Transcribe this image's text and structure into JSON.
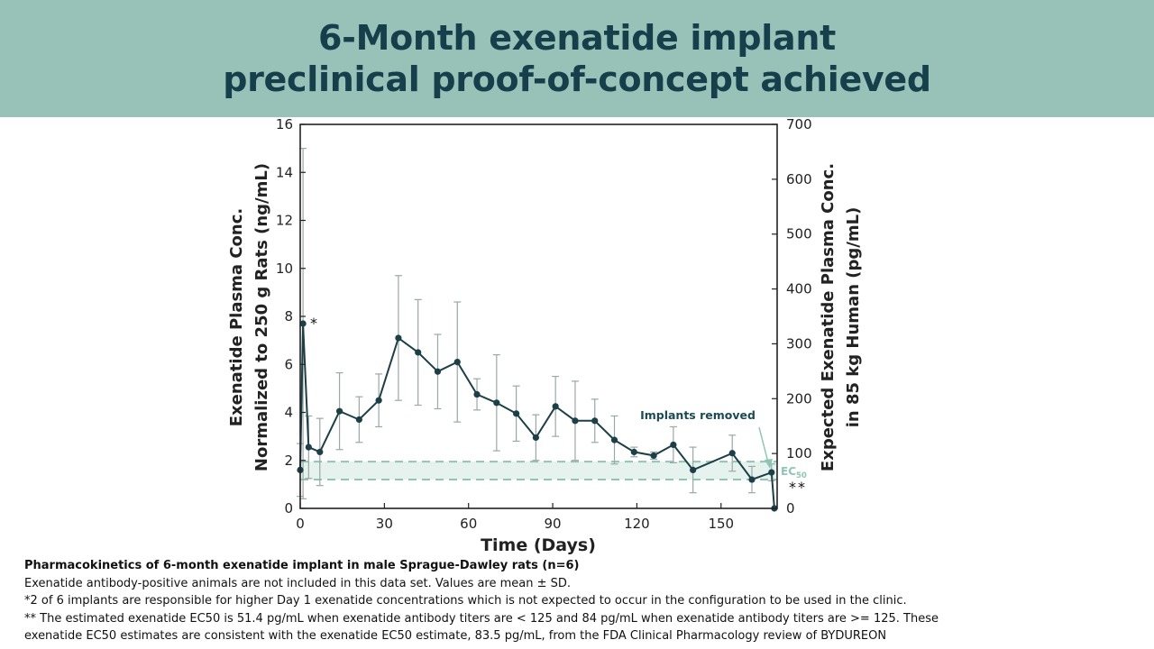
{
  "header": {
    "title_line1": "6-Month exenatide implant",
    "title_line2": "preclinical proof-of-concept achieved"
  },
  "colors": {
    "band": "#98c1b8",
    "title": "#173e4b",
    "series": "#1d3f47",
    "errorbar": "#9aa8a6",
    "ec50": "#8ec6b5",
    "annotation": "#1b4a55"
  },
  "chart_data": {
    "type": "line",
    "xlabel": "Time (Days)",
    "ylabel_left_line1": "Exenatide Plasma Conc.",
    "ylabel_left_line2": "Normalized to 250 g Rats (ng/mL)",
    "ylabel_right_line1": "Expected Exenatide Plasma Conc.",
    "ylabel_right_line2": "in 85 kg Human (pg/mL)",
    "xlim": [
      0,
      170
    ],
    "ylim_left": [
      0,
      16
    ],
    "ylim_right": [
      0,
      700
    ],
    "x_ticks": [
      0,
      30,
      60,
      90,
      120,
      150
    ],
    "y_ticks_left": [
      0,
      2,
      4,
      6,
      8,
      10,
      12,
      14,
      16
    ],
    "y_ticks_right": [
      0,
      100,
      200,
      300,
      400,
      500,
      600,
      700
    ],
    "series": [
      {
        "name": "Exenatide plasma concentration (mean ± SD)",
        "points": [
          {
            "x": 0,
            "y": 1.6,
            "sd": 1.1
          },
          {
            "x": 1,
            "y": 7.7,
            "sd": 7.3
          },
          {
            "x": 3,
            "y": 2.55,
            "sd": 1.3
          },
          {
            "x": 7,
            "y": 2.35,
            "sd": 1.4
          },
          {
            "x": 14,
            "y": 4.05,
            "sd": 1.6
          },
          {
            "x": 21,
            "y": 3.7,
            "sd": 0.95
          },
          {
            "x": 28,
            "y": 4.5,
            "sd": 1.1
          },
          {
            "x": 35,
            "y": 7.1,
            "sd": 2.6
          },
          {
            "x": 42,
            "y": 6.5,
            "sd": 2.2
          },
          {
            "x": 49,
            "y": 5.7,
            "sd": 1.55
          },
          {
            "x": 56,
            "y": 6.1,
            "sd": 2.5
          },
          {
            "x": 63,
            "y": 4.75,
            "sd": 0.65
          },
          {
            "x": 70,
            "y": 4.4,
            "sd": 2.0
          },
          {
            "x": 77,
            "y": 3.95,
            "sd": 1.15
          },
          {
            "x": 84,
            "y": 2.95,
            "sd": 0.95
          },
          {
            "x": 91,
            "y": 4.25,
            "sd": 1.25
          },
          {
            "x": 98,
            "y": 3.65,
            "sd": 1.65
          },
          {
            "x": 105,
            "y": 3.65,
            "sd": 0.9
          },
          {
            "x": 112,
            "y": 2.85,
            "sd": 1.0
          },
          {
            "x": 119,
            "y": 2.35,
            "sd": 0.2
          },
          {
            "x": 126,
            "y": 2.2,
            "sd": 0.15
          },
          {
            "x": 133,
            "y": 2.65,
            "sd": 0.75
          },
          {
            "x": 140,
            "y": 1.6,
            "sd": 0.95
          },
          {
            "x": 154,
            "y": 2.3,
            "sd": 0.75
          },
          {
            "x": 161,
            "y": 1.2,
            "sd": 0.55
          },
          {
            "x": 168,
            "y": 1.5,
            "sd": 0.35
          },
          {
            "x": 169,
            "y": 0.0,
            "sd": 0.0
          }
        ]
      }
    ],
    "ec50_band": {
      "low": 1.2,
      "high": 1.95
    },
    "ec50_label_main": "EC",
    "ec50_label_sub": "50",
    "annotations": {
      "implants_removed": "Implants removed",
      "asterisk_day1": "*",
      "asterisk_end": "**"
    },
    "grid": false
  },
  "footnotes": {
    "title": "Pharmacokinetics of 6-month exenatide implant in male Sprague-Dawley rats (n=6)",
    "line1": "Exenatide antibody-positive animals are not included in this data set. Values are mean ± SD.",
    "line2": "*2 of 6 implants are responsible for higher Day 1 exenatide concentrations which is not expected to occur in the configuration to be used in the clinic.",
    "line3": "** The estimated exenatide EC50 is 51.4 pg/mL when exenatide antibody titers are < 125 and 84 pg/mL when exenatide antibody titers are >= 125. These",
    "line4": "exenatide EC50 estimates are consistent with the exenatide EC50 estimate, 83.5 pg/mL, from the FDA Clinical Pharmacology review of BYDUREON"
  }
}
